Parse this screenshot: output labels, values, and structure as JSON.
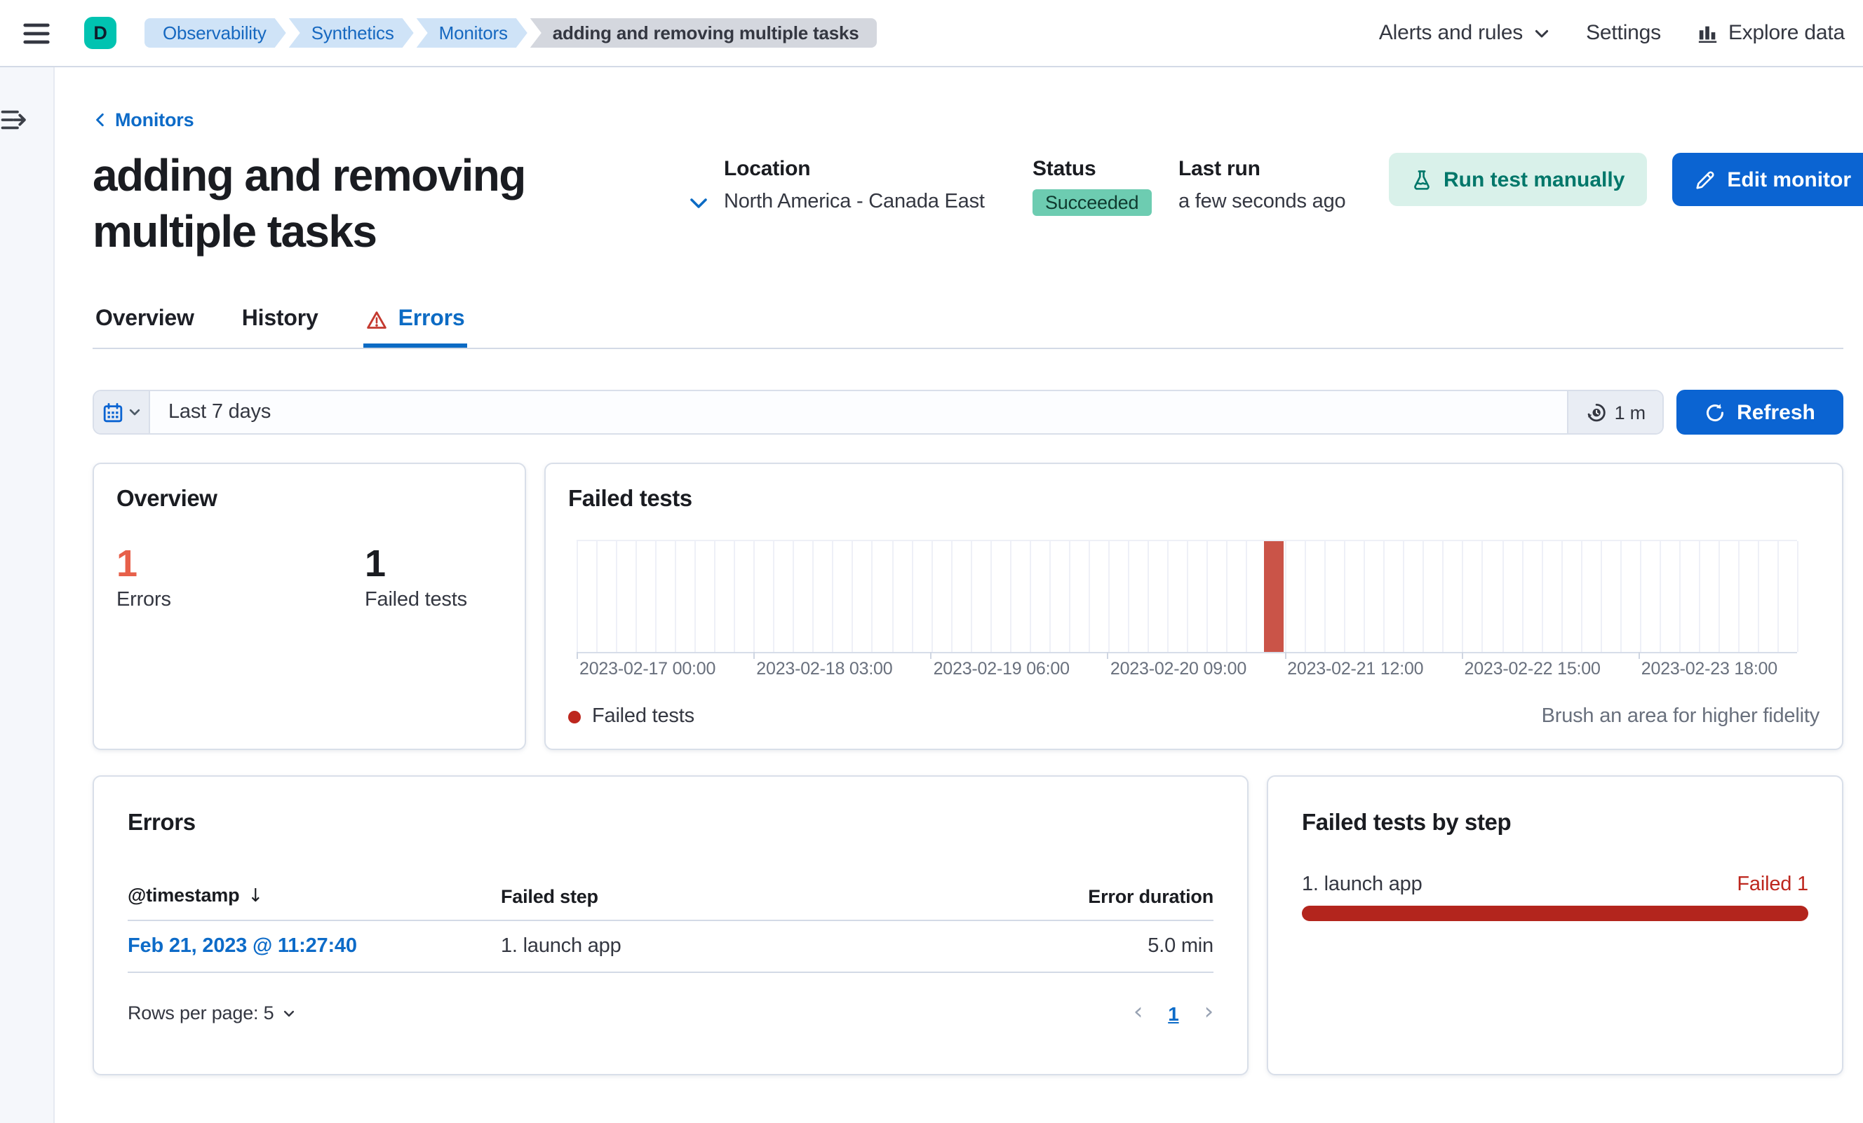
{
  "header": {
    "avatar": "D",
    "breadcrumbs": [
      "Observability",
      "Synthetics",
      "Monitors",
      "adding and removing multiple tasks"
    ],
    "nav": {
      "alerts": "Alerts and rules",
      "settings": "Settings",
      "explore": "Explore data"
    }
  },
  "page": {
    "back_link": "Monitors",
    "title": "adding and removing multiple tasks",
    "meta": {
      "location_label": "Location",
      "location": "North America - Canada East",
      "status_label": "Status",
      "status": "Succeeded",
      "last_run_label": "Last run",
      "last_run": "a few seconds ago"
    },
    "actions": {
      "run_test": "Run test manually",
      "edit": "Edit monitor"
    }
  },
  "tabs": [
    {
      "label": "Overview",
      "active": false
    },
    {
      "label": "History",
      "active": false
    },
    {
      "label": "Errors",
      "active": true,
      "icon": "warning"
    }
  ],
  "toolbar": {
    "time_range": "Last 7 days",
    "refresh_interval": "1 m",
    "refresh": "Refresh"
  },
  "overview_panel": {
    "title": "Overview",
    "stats": [
      {
        "value": "1",
        "label": "Errors",
        "color": "#e7604a"
      },
      {
        "value": "1",
        "label": "Failed tests",
        "color": "#1a1c21"
      }
    ]
  },
  "chart_panel": {
    "title": "Failed tests",
    "legend": "Failed tests",
    "brush_hint": "Brush an area for higher fidelity"
  },
  "chart_data": {
    "type": "bar",
    "title": "Failed tests",
    "x_ticks": [
      "2023-02-17 00:00",
      "2023-02-18 03:00",
      "2023-02-19 06:00",
      "2023-02-20 09:00",
      "2023-02-21 12:00",
      "2023-02-22 15:00",
      "2023-02-23 18:00"
    ],
    "x_range": [
      "2023-02-17 00:00",
      "2023-02-24 00:00"
    ],
    "y_max": 1,
    "series": [
      {
        "name": "Failed tests",
        "color": "#ca5448",
        "points": [
          {
            "x": "2023-02-21 09:30",
            "y": 1
          }
        ]
      }
    ],
    "legend": [
      "Failed tests"
    ],
    "legend_position": "bottom",
    "grid": true,
    "layout": {
      "gridlines": 62,
      "tick_step_pct": 14.5,
      "bar_left_pct": 56.3,
      "bar_width_pct": 1.6
    }
  },
  "errors_panel": {
    "title": "Errors",
    "columns": [
      "@timestamp",
      "Failed step",
      "Error duration"
    ],
    "rows": [
      {
        "timestamp": "Feb 21, 2023 @ 11:27:40",
        "failed_step": "1. launch app",
        "duration": "5.0 min"
      }
    ],
    "rows_per_page": "Rows per page: 5",
    "page": "1"
  },
  "steps_panel": {
    "title": "Failed tests by step",
    "steps": [
      {
        "name": "1. launch app",
        "status": "Failed 1",
        "bar_color": "#b3251d",
        "bar_pct": 100
      }
    ]
  },
  "colors": {
    "primary": "#0b64d2",
    "link": "#0d6bc8",
    "danger": "#bd271e",
    "error_accent": "#e7604a",
    "bar_red": "#ca5448",
    "badge_success": "#6dccb1",
    "run_button_bg": "#d9f1ea",
    "run_button_text": "#01776a",
    "avatar_bg": "#00c3b1"
  }
}
